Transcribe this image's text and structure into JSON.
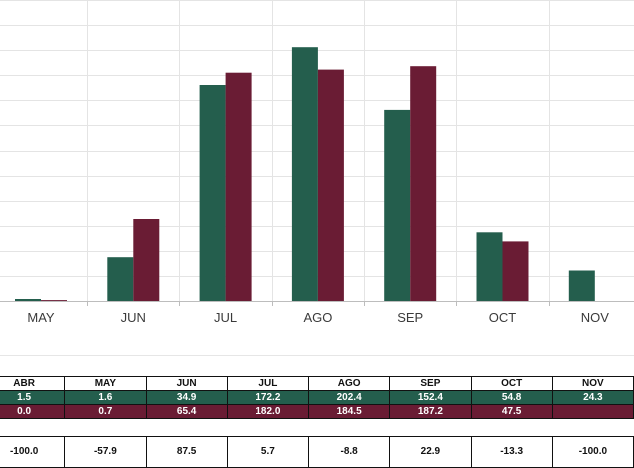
{
  "colors": {
    "series_1": "#245e4d",
    "series_2": "#6a1c34",
    "grid": "#e4e4e4",
    "axis": "#bdbdbd"
  },
  "chart_data": {
    "type": "bar",
    "categories": [
      "MAY",
      "JUN",
      "JUL",
      "AGO",
      "SEP",
      "OCT",
      "NOV"
    ],
    "series": [
      {
        "values": [
          1.6,
          34.9,
          172.2,
          202.4,
          152.4,
          54.8,
          24.3
        ]
      },
      {
        "values": [
          0.7,
          65.4,
          182.0,
          184.5,
          187.2,
          47.5,
          null
        ]
      }
    ],
    "ylim": [
      0,
      240
    ],
    "grid": true,
    "legend": "none"
  },
  "table": {
    "headers": [
      "ABR",
      "MAY",
      "JUN",
      "JUL",
      "AGO",
      "SEP",
      "OCT",
      "NOV"
    ],
    "row_green": [
      "1.5",
      "1.6",
      "34.9",
      "172.2",
      "202.4",
      "152.4",
      "54.8",
      "24.3"
    ],
    "row_red": [
      "0.0",
      "0.7",
      "65.4",
      "182.0",
      "184.5",
      "187.2",
      "47.5",
      ""
    ],
    "variation": [
      "-100.0",
      "-57.9",
      "87.5",
      "5.7",
      "-8.8",
      "22.9",
      "-13.3",
      "-100.0"
    ]
  }
}
